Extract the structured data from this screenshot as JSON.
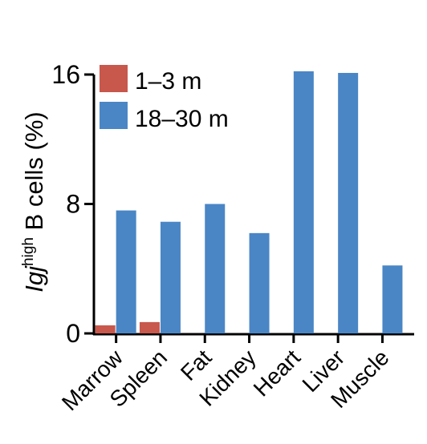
{
  "chart_data": {
    "type": "bar",
    "categories": [
      "Marrow",
      "Spleen",
      "Fat",
      "Kidney",
      "Heart",
      "Liver",
      "Muscle"
    ],
    "series": [
      {
        "name": "1–3 m",
        "color": "#c8574c",
        "values": [
          0.5,
          0.7,
          0,
          0,
          0,
          0,
          0
        ]
      },
      {
        "name": "18–30 m",
        "color": "#4a86c5",
        "values": [
          7.6,
          6.9,
          8.0,
          6.2,
          16.2,
          16.1,
          4.2
        ]
      }
    ],
    "ylabel": {
      "main": "Igj",
      "sup": "high",
      "rest": " B cells (%)"
    },
    "yticks": [
      "0",
      "8",
      "16"
    ],
    "ylim": [
      0,
      16
    ],
    "grid": false,
    "legend_position": "top-left"
  }
}
